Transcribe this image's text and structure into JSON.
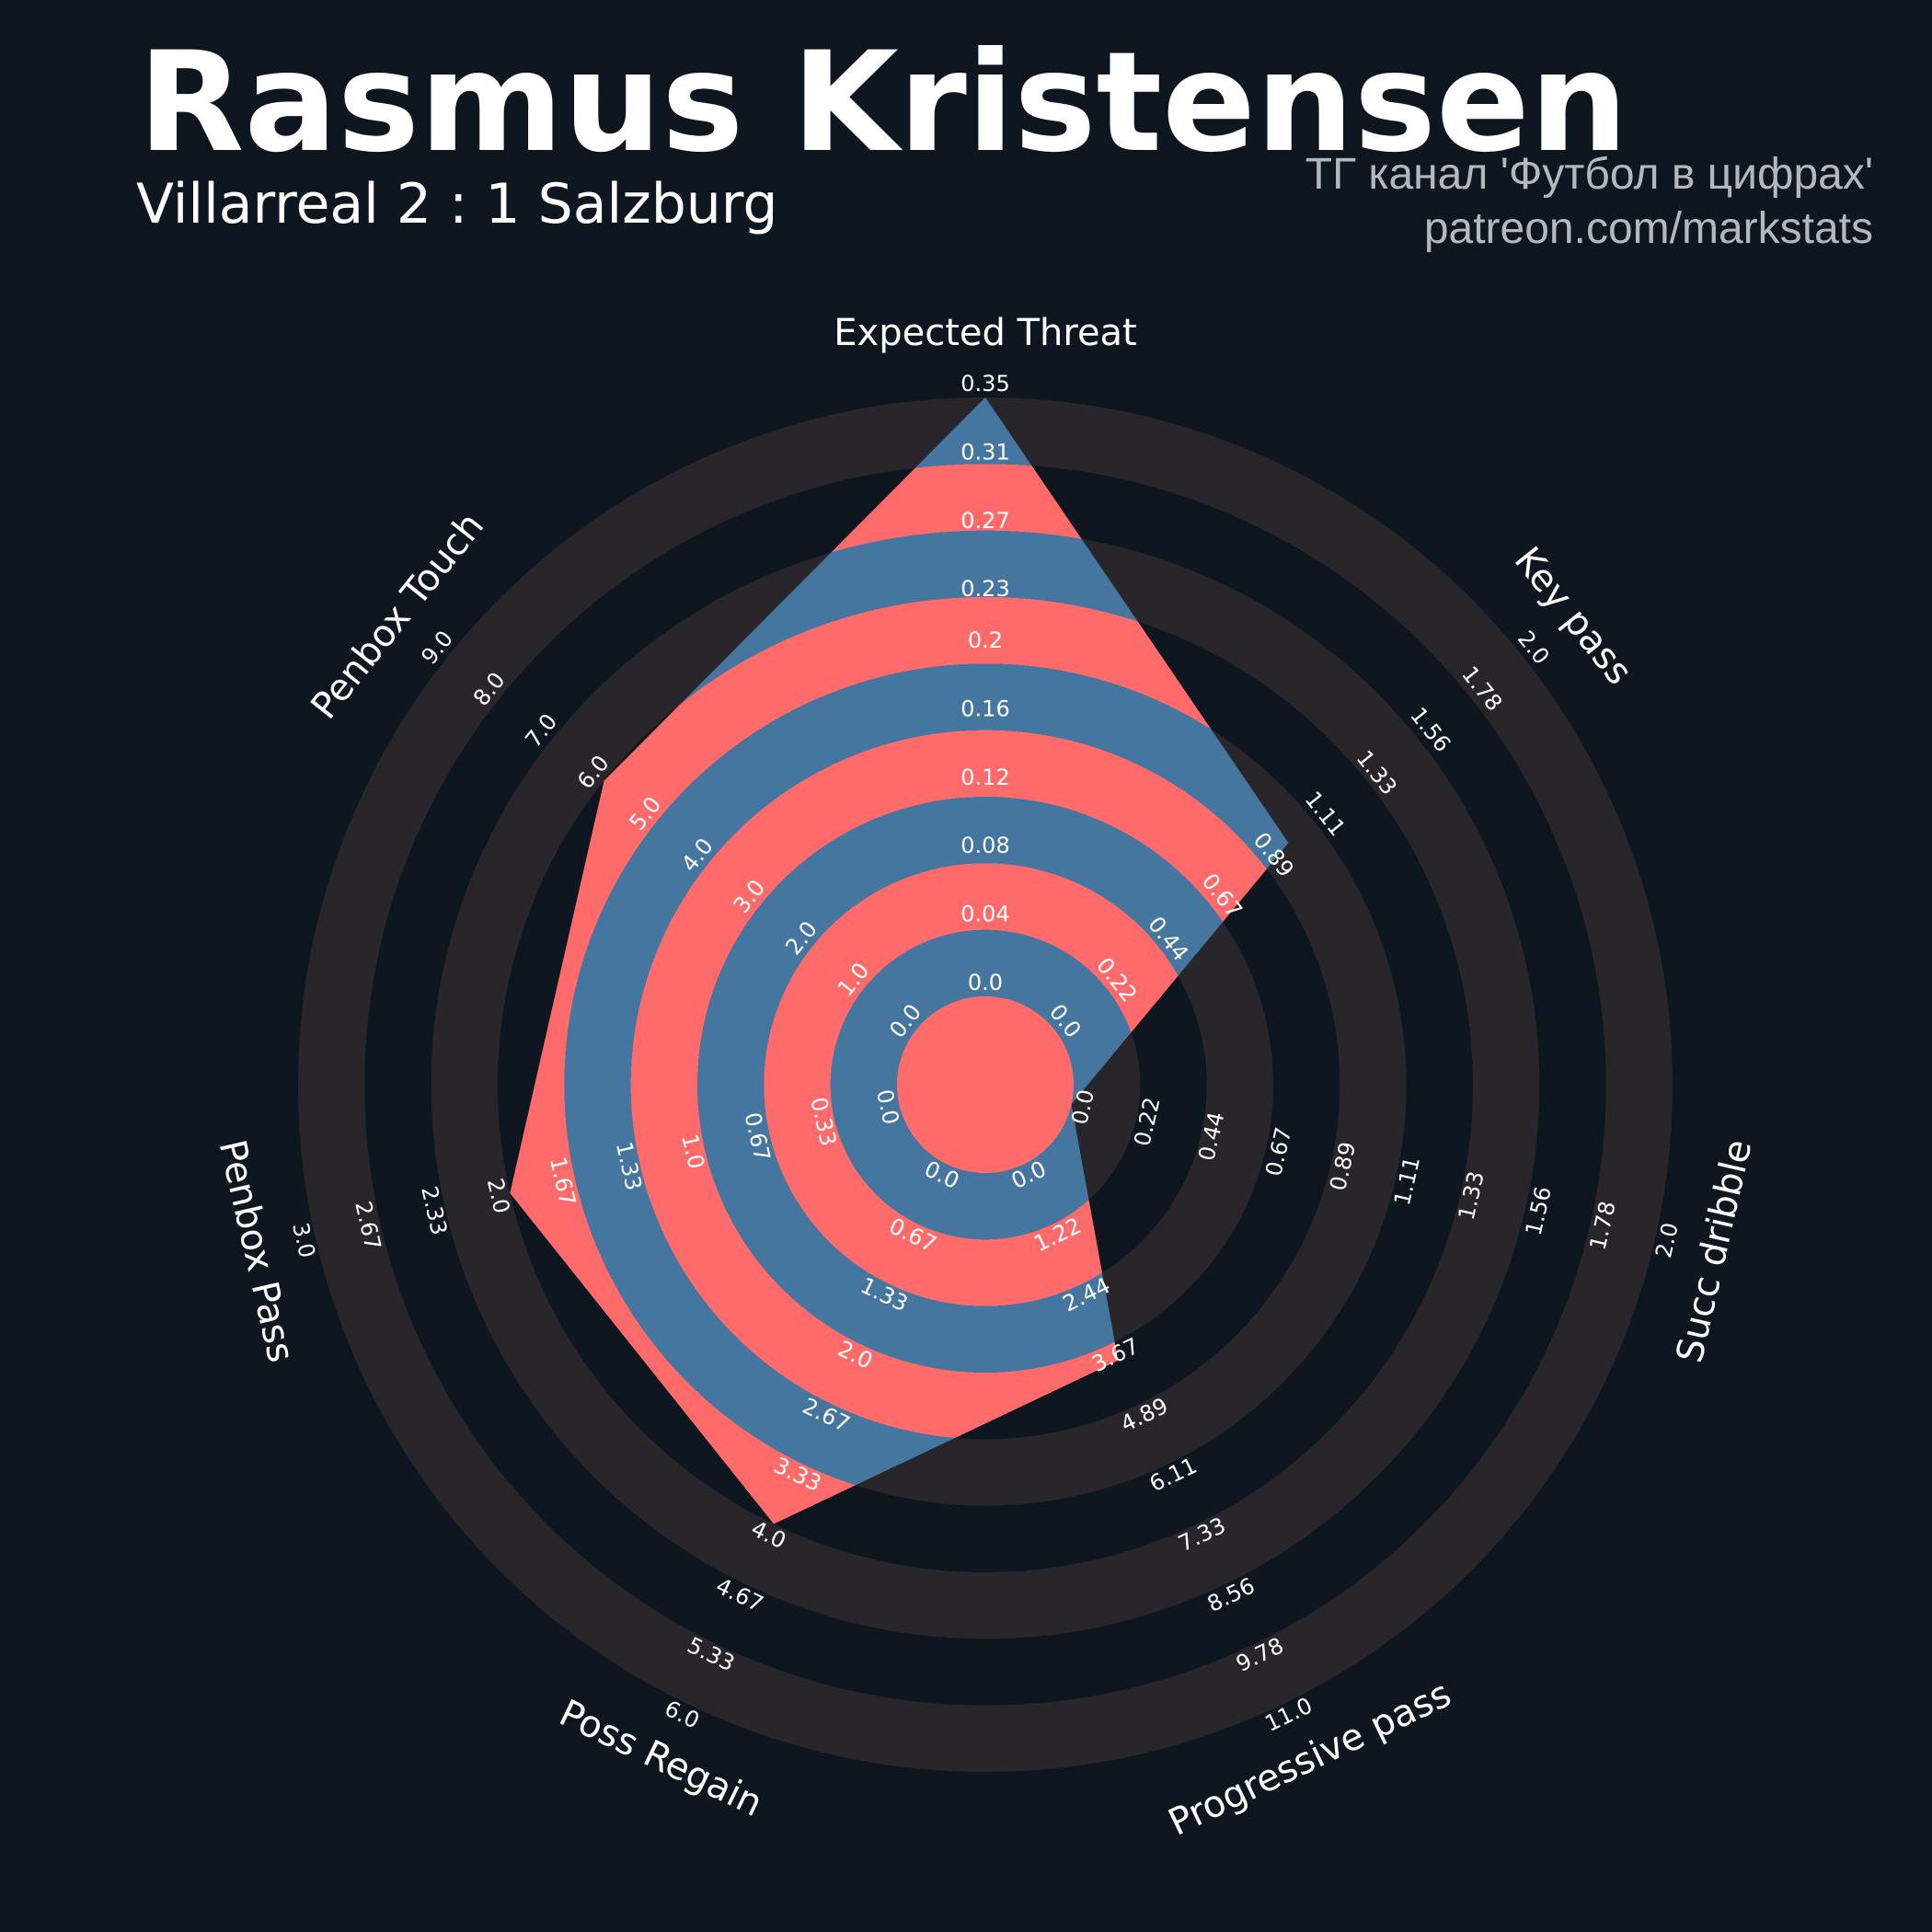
{
  "chart_data": {
    "type": "radar",
    "title": "Rasmus Kristensen",
    "subtitle": "Villarreal 2 : 1 Salzburg",
    "credits": [
      "ТГ канал 'Футбол в цифрах'",
      "patreon.com/markstats"
    ],
    "axes": [
      {
        "name": "Expected Threat",
        "lim": [
          0,
          0.35
        ],
        "ticks": [
          {
            "value": 0,
            "label": "0.0"
          },
          0.04,
          0.08,
          0.12,
          0.16,
          0.2,
          0.23,
          0.27,
          0.31,
          0.35
        ]
      },
      {
        "name": "Key pass",
        "lim": [
          0,
          2
        ],
        "ticks": [
          {
            "value": 0,
            "label": "0.0"
          },
          0.22,
          0.44,
          0.67,
          0.89,
          1.11,
          1.33,
          1.56,
          1.78,
          {
            "value": 2,
            "label": "2.0"
          }
        ]
      },
      {
        "name": "Succ dribble",
        "lim": [
          0,
          2
        ],
        "ticks": [
          {
            "value": 0,
            "label": "0.0"
          },
          0.22,
          0.44,
          0.67,
          0.89,
          1.11,
          1.33,
          1.56,
          1.78,
          {
            "value": 2,
            "label": "2.0"
          }
        ]
      },
      {
        "name": "Progressive pass",
        "lim": [
          0,
          11
        ],
        "ticks": [
          {
            "value": 0,
            "label": "0.0"
          },
          1.22,
          2.44,
          3.67,
          4.89,
          6.11,
          7.33,
          8.56,
          9.78,
          {
            "value": 11,
            "label": "11.0"
          }
        ]
      },
      {
        "name": "Poss Regain",
        "lim": [
          0,
          6
        ],
        "ticks": [
          {
            "value": 0,
            "label": "0.0"
          },
          0.67,
          1.33,
          {
            "value": 2,
            "label": "2.0"
          },
          2.67,
          3.33,
          {
            "value": 4,
            "label": "4.0"
          },
          4.67,
          5.33,
          {
            "value": 6,
            "label": "6.0"
          }
        ]
      },
      {
        "name": "Penbox Pass",
        "lim": [
          0,
          3
        ],
        "ticks": [
          {
            "value": 0,
            "label": "0.0"
          },
          0.33,
          0.67,
          {
            "value": 1,
            "label": "1.0"
          },
          1.33,
          1.67,
          {
            "value": 2,
            "label": "2.0"
          },
          2.33,
          2.67,
          {
            "value": 3,
            "label": "3.0"
          }
        ]
      },
      {
        "name": "Penbox Touch",
        "lim": [
          0,
          9
        ],
        "ticks": [
          {
            "value": 0,
            "label": "0.0"
          },
          {
            "value": 1,
            "label": "1.0"
          },
          {
            "value": 2,
            "label": "2.0"
          },
          {
            "value": 3,
            "label": "3.0"
          },
          {
            "value": 4,
            "label": "4.0"
          },
          {
            "value": 5,
            "label": "5.0"
          },
          {
            "value": 6,
            "label": "6.0"
          },
          {
            "value": 7,
            "label": "7.0"
          },
          {
            "value": 8,
            "label": "8.0"
          },
          {
            "value": 9,
            "label": "9.0"
          }
        ]
      }
    ],
    "values": [
      0.35,
      1,
      0,
      4,
      4,
      2,
      6
    ],
    "colors": [
      "#ff6b6b",
      "#44769f"
    ],
    "ring_color": "#28252b",
    "background": "#0e1720"
  }
}
